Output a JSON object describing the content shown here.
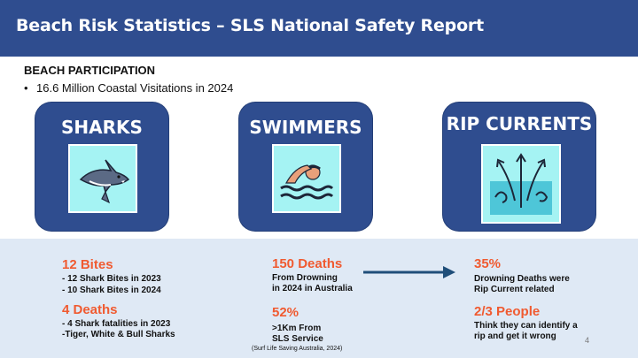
{
  "header": {
    "title": "Beach Risk Statistics – SLS National Safety Report"
  },
  "participation": {
    "heading": "BEACH PARTICIPATION",
    "bullet": "16.6 Million Coastal Visitations in 2024"
  },
  "cards": {
    "sharks": {
      "title": "SHARKS",
      "icon": "shark-icon"
    },
    "swimmers": {
      "title": "SWIMMERS",
      "icon": "swimmer-icon"
    },
    "rip": {
      "title": "RIP CURRENTS",
      "icon": "rip-current-icon"
    }
  },
  "sharks_stats": {
    "bites_title": "12 Bites",
    "bites_line1": "- 12 Shark Bites in 2023",
    "bites_line2": "- 10 Shark Bites in 2024",
    "deaths_title": "4 Deaths",
    "deaths_line1": "- 4 Shark fatalities in 2023",
    "deaths_line2": "-Tiger, White & Bull Sharks"
  },
  "swimmers_stats": {
    "deaths_title": "150 Deaths",
    "deaths_line1": "From Drowning",
    "deaths_line2": "in 2024 in Australia",
    "pct_title": "52%",
    "pct_line1": ">1Km From",
    "pct_line2": "SLS Service",
    "source": "(Surf Life Saving Australia, 2024)"
  },
  "rip_stats": {
    "pct_title": "35%",
    "pct_line1": "Drowning Deaths were",
    "pct_line2": "Rip Current related",
    "people_title": "2/3 People",
    "people_line1": "Think they can identify a",
    "people_line2": "rip and get it wrong"
  },
  "page_number": "4",
  "colors": {
    "header": "#2f4d8f",
    "card": "#2f4d8f",
    "accent": "#f05a30",
    "icon_bg": "#a5f3f3",
    "band": "#dfe9f5"
  }
}
